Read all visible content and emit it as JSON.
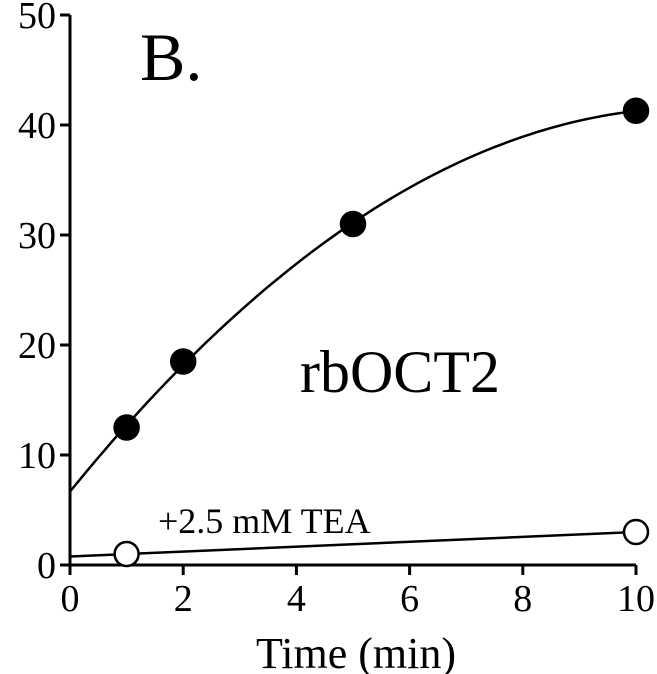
{
  "chart_data": {
    "type": "scatter",
    "panel_label": "B.",
    "xlabel": "Time (min)",
    "ylabel": "",
    "xlim": [
      0,
      10
    ],
    "ylim": [
      0,
      50
    ],
    "xticks": [
      0,
      2,
      4,
      6,
      8,
      10
    ],
    "yticks": [
      0,
      10,
      20,
      30,
      40,
      50
    ],
    "grid": false,
    "series": [
      {
        "name": "rbOCT2",
        "marker": "filled-circle",
        "color": "#000000",
        "x": [
          1,
          2,
          5,
          10
        ],
        "y": [
          12.5,
          18.5,
          31,
          41.3
        ],
        "fit": "saturating curve"
      },
      {
        "name": "+2.5 mM TEA",
        "marker": "open-circle",
        "color": "#000000",
        "x": [
          1,
          10
        ],
        "y": [
          1,
          3
        ],
        "fit": "linear"
      }
    ]
  }
}
